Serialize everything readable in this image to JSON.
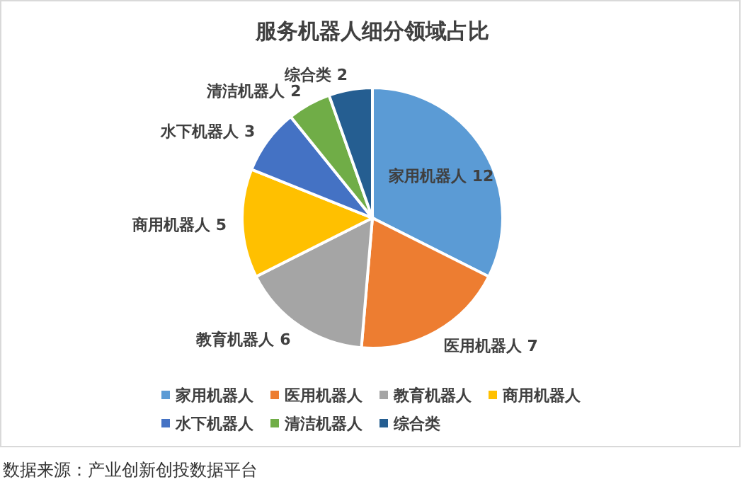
{
  "chart_data": {
    "type": "pie",
    "title": "服务机器人细分领域占比",
    "categories": [
      "家用机器人",
      "医用机器人",
      "教育机器人",
      "商用机器人",
      "水下机器人",
      "清洁机器人",
      "综合类"
    ],
    "values": [
      12,
      7,
      6,
      5,
      3,
      2,
      2
    ],
    "colors": [
      "#5b9bd5",
      "#ed7d31",
      "#a5a5a5",
      "#ffc000",
      "#4472c4",
      "#70ad47",
      "#255e91"
    ],
    "data_labels": true,
    "legend": "bottom",
    "annotations": [
      "数据来源：产业创新创投数据平台"
    ]
  }
}
